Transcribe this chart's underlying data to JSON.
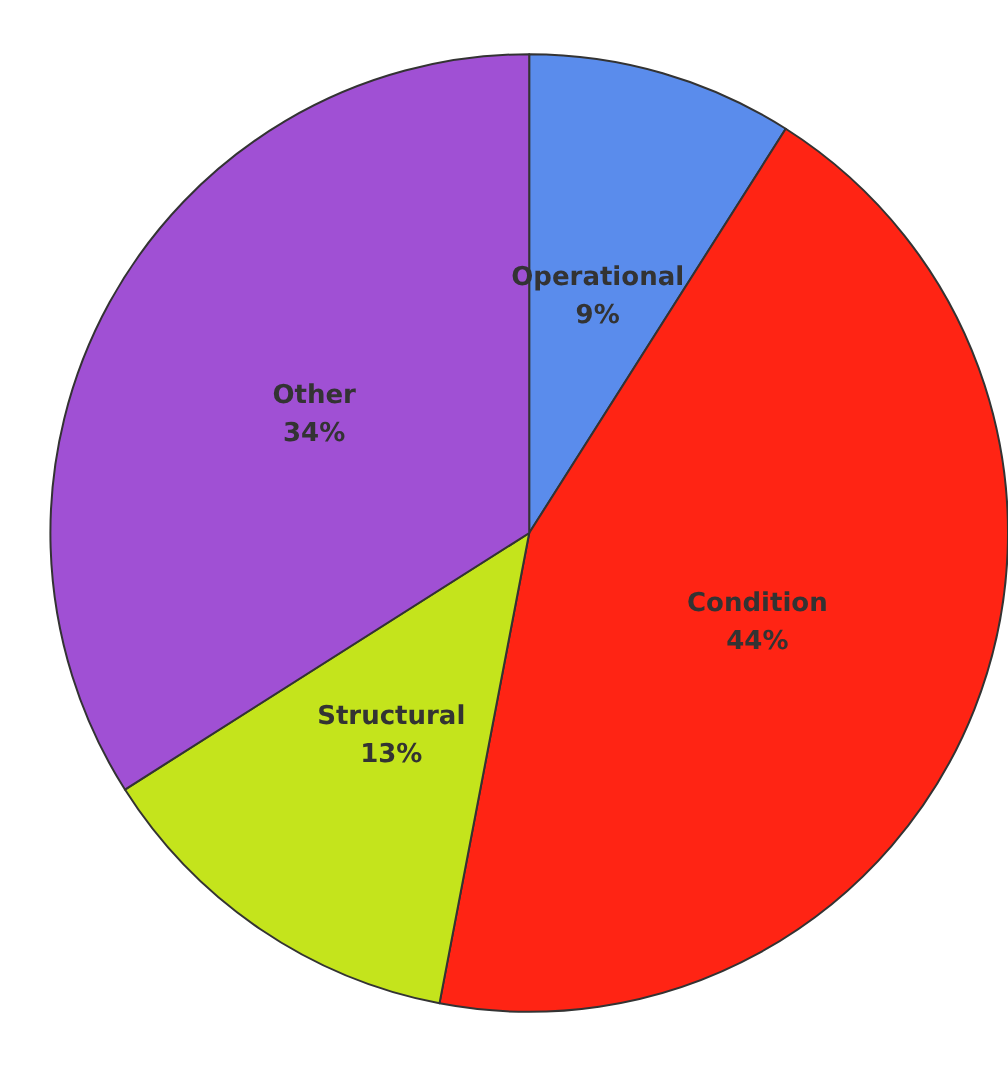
{
  "chart_data": {
    "type": "pie",
    "categories": [
      "Operational",
      "Condition",
      "Structural",
      "Other"
    ],
    "values": [
      9,
      44,
      13,
      34
    ],
    "colors": [
      "#5a8cec",
      "#ff2414",
      "#c4e41c",
      "#a050d4"
    ],
    "value_labels": [
      "9%",
      "44%",
      "13%",
      "34%"
    ],
    "legend": false
  }
}
